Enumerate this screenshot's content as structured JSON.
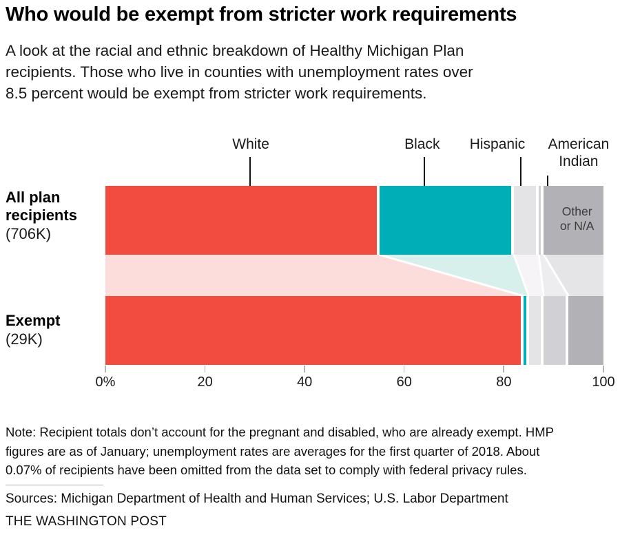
{
  "title": "Who would be exempt from stricter work requirements",
  "subtitle": {
    "lines": [
      "A look at the racial and ethnic breakdown of Healthy Michigan Plan",
      "recipients. Those who live in counties with unemployment rates over",
      "8.5 percent would be exempt from stricter work requirements."
    ]
  },
  "chart_data": {
    "type": "bar",
    "variant": "horizontal-stacked-flow",
    "title": "Who would be exempt from stricter work requirements",
    "unit": "percent of recipients",
    "categories": [
      "White",
      "Black",
      "Hispanic",
      "American Indian",
      "Other or N/A"
    ],
    "rows": [
      {
        "label": "All plan recipients",
        "sublabel": "(706K)",
        "values": [
          55,
          27,
          5,
          1,
          12
        ]
      },
      {
        "label": "Exempt",
        "sublabel": "(29K)",
        "values": [
          84,
          1,
          3,
          5,
          7
        ]
      }
    ],
    "x_axis": {
      "range": [
        0,
        100
      ],
      "tick_values": [
        0,
        20,
        40,
        60,
        80,
        100
      ],
      "tick_labels": [
        "0%",
        "20",
        "40",
        "60",
        "80",
        "100"
      ],
      "grid": false
    },
    "in_bar_label": "Other\nor N/A",
    "callouts": [
      {
        "text": "White",
        "label_x_pct": 29.2,
        "marker_x_pct": 29.0,
        "two_line": false
      },
      {
        "text": "Black",
        "label_x_pct": 63.6,
        "marker_x_pct": 64.0,
        "two_line": false
      },
      {
        "text": "Hispanic",
        "label_x_pct": 78.7,
        "marker_x_pct": 83.4,
        "two_line": false
      },
      {
        "text": "American\nIndian",
        "label_x_pct": 95.0,
        "marker_x_pct": 88.8,
        "two_line": true
      }
    ]
  },
  "colors": {
    "segments": [
      "#f24c41",
      "#00aeb8",
      "#e4e3e5",
      "#d1d1d5",
      "#b2b1b5"
    ],
    "flows": [
      "#fcdddc",
      "#d7f0ec",
      "#f6f4f6",
      "#edecef",
      "#e5e4e7"
    ],
    "marker": "#111111",
    "tick": "#b5b5b5",
    "separator": "#ffffff"
  },
  "note": {
    "lines": [
      "Note: Recipient totals don’t account for the pregnant and disabled, who are already exempt. HMP",
      "figures are as of January; unemployment rates are averages for the first quarter of 2018. About",
      "0.07% of recipients have been omitted from the data set to comply with federal privacy rules."
    ]
  },
  "sources": "Sources: Michigan Department of Health and Human Services; U.S. Labor Department",
  "credit": "THE WASHINGTON POST"
}
